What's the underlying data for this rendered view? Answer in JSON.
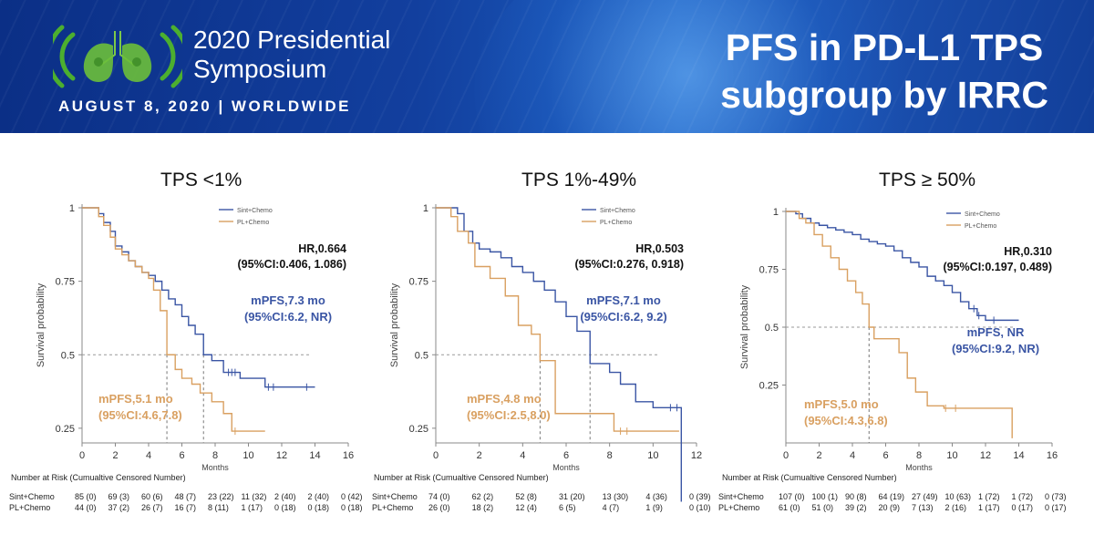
{
  "header": {
    "symposium_line1": "2020 Presidential",
    "symposium_line2": "Symposium",
    "date": "AUGUST 8, 2020 | WORLDWIDE",
    "slide_title_line1": "PFS in PD-L1 TPS",
    "slide_title_line2": "subgroup by IRRC",
    "colors": {
      "banner": "#123f9e",
      "sint": "#3a55a4",
      "pl": "#d9a061",
      "logo_green": "#4caf2f"
    }
  },
  "risk_table_title": "Number at Risk (Cumualtive Censored Number)",
  "chart_data": [
    {
      "type": "line",
      "title": "TPS <1%",
      "xlabel": "Months",
      "ylabel": "Survival probability",
      "xlim": [
        0,
        16
      ],
      "ylim": [
        0.2,
        1.0
      ],
      "x_ticks": [
        0,
        2,
        4,
        6,
        8,
        10,
        12,
        14,
        16
      ],
      "y_ticks": [
        0.25,
        0.5,
        0.75,
        1
      ],
      "y_tick_labels": [
        "0.25",
        "0.5",
        "0.75",
        "1"
      ],
      "legend": [
        "Sint+Chemo",
        "PL+Chemo"
      ],
      "hr_line1": "HR,0.664",
      "hr_line2": "(95%CI:0.406, 1.086)",
      "sint_median_line1": "mPFS,7.3 mo",
      "sint_median_line2": "(95%CI:6.2, NR)",
      "pl_median_line1": "mPFS,5.1 mo",
      "pl_median_line2": "(95%CI:4.6,7.8)",
      "medians": [
        7.3,
        5.1
      ],
      "series": [
        {
          "name": "Sint+Chemo",
          "x": [
            0,
            1,
            1.3,
            1.7,
            2,
            2.4,
            2.8,
            3.2,
            3.6,
            4,
            4.4,
            4.8,
            5.2,
            5.6,
            6,
            6.4,
            6.8,
            7.3,
            7.8,
            8.5,
            9.5,
            11,
            14
          ],
          "y": [
            1,
            0.98,
            0.95,
            0.92,
            0.87,
            0.85,
            0.82,
            0.8,
            0.78,
            0.77,
            0.75,
            0.72,
            0.69,
            0.67,
            0.63,
            0.6,
            0.57,
            0.5,
            0.48,
            0.44,
            0.42,
            0.39,
            0.39
          ],
          "censor_x": [
            8.8,
            9,
            9.2,
            11.2,
            11.5,
            13.5
          ]
        },
        {
          "name": "PL+Chemo",
          "x": [
            0,
            1,
            1.3,
            1.7,
            2,
            2.4,
            2.8,
            3.2,
            3.6,
            4,
            4.3,
            4.7,
            5.1,
            5.6,
            6,
            6.6,
            7.1,
            7.8,
            8.5,
            9,
            11
          ],
          "y": [
            1,
            0.97,
            0.94,
            0.9,
            0.86,
            0.84,
            0.82,
            0.8,
            0.78,
            0.76,
            0.72,
            0.65,
            0.5,
            0.45,
            0.42,
            0.4,
            0.37,
            0.34,
            0.3,
            0.24,
            0.24
          ],
          "censor_x": [
            9.2
          ]
        }
      ],
      "risk_sint": [
        "85 (0)",
        "69 (3)",
        "60 (6)",
        "48 (7)",
        "23 (22)",
        "11 (32)",
        "2 (40)",
        "2 (40)",
        "0 (42)"
      ],
      "risk_pl": [
        "44 (0)",
        "37 (2)",
        "26 (7)",
        "16 (7)",
        "8 (11)",
        "1 (17)",
        "0 (18)",
        "0 (18)",
        "0 (18)"
      ]
    },
    {
      "type": "line",
      "title": "TPS 1%-49%",
      "xlabel": "Months",
      "ylabel": "Survival probability",
      "xlim": [
        0,
        12
      ],
      "ylim": [
        0.2,
        1.0
      ],
      "x_ticks": [
        0,
        2,
        4,
        6,
        8,
        10,
        12
      ],
      "y_ticks": [
        0.25,
        0.5,
        0.75,
        1
      ],
      "y_tick_labels": [
        "0.25",
        "0.5",
        "0.75",
        "1"
      ],
      "legend": [
        "Sint+Chemo",
        "PL+Chemo"
      ],
      "hr_line1": "HR,0.503",
      "hr_line2": "(95%CI:0.276, 0.918)",
      "sint_median_line1": "mPFS,7.1 mo",
      "sint_median_line2": "(95%CI:6.2, 9.2)",
      "pl_median_line1": "mPFS,4.8 mo",
      "pl_median_line2": "(95%CI:2.5,8.0)",
      "medians": [
        7.1,
        4.8
      ],
      "series": [
        {
          "name": "Sint+Chemo",
          "x": [
            0,
            1,
            1.3,
            1.7,
            2,
            2.5,
            3,
            3.5,
            4,
            4.5,
            5,
            5.5,
            6,
            6.5,
            7.1,
            8,
            8.5,
            9.2,
            10,
            11,
            11.3
          ],
          "y": [
            1,
            0.98,
            0.92,
            0.88,
            0.86,
            0.85,
            0.83,
            0.8,
            0.78,
            0.75,
            0.72,
            0.68,
            0.63,
            0.58,
            0.47,
            0.44,
            0.4,
            0.34,
            0.32,
            0.32,
            0.0
          ],
          "censor_x": [
            10.8,
            11.1
          ]
        },
        {
          "name": "PL+Chemo",
          "x": [
            0,
            0.7,
            1,
            1.5,
            1.8,
            2.5,
            3.2,
            3.8,
            4.4,
            4.8,
            5.5,
            6,
            6.5,
            7.1,
            7.8,
            8.2,
            9,
            11.2
          ],
          "y": [
            1,
            0.97,
            0.92,
            0.88,
            0.8,
            0.76,
            0.7,
            0.6,
            0.57,
            0.48,
            0.3,
            0.3,
            0.3,
            0.3,
            0.3,
            0.24,
            0.24,
            0.24
          ],
          "censor_x": [
            8.5,
            8.8
          ]
        }
      ],
      "risk_sint": [
        "74 (0)",
        "62 (2)",
        "52 (8)",
        "31 (20)",
        "13 (30)",
        "4 (36)",
        "0 (39)"
      ],
      "risk_pl": [
        "26 (0)",
        "18 (2)",
        "12 (4)",
        "6 (5)",
        "4 (7)",
        "1 (9)",
        "0 (10)"
      ]
    },
    {
      "type": "line",
      "title": "TPS ≥ 50%",
      "xlabel": "Months",
      "ylabel": "Survival probability",
      "xlim": [
        0,
        16
      ],
      "ylim": [
        0.0,
        1.0
      ],
      "x_ticks": [
        0,
        2,
        4,
        6,
        8,
        10,
        12,
        14,
        16
      ],
      "y_ticks": [
        0.25,
        0.5,
        0.75,
        1
      ],
      "y_tick_labels": [
        "0.25",
        "0.5",
        "0.75",
        "1"
      ],
      "legend": [
        "Sint+Chemo",
        "PL+Chemo"
      ],
      "hr_line1": "HR,0.310",
      "hr_line2": "(95%CI:0.197, 0.489)",
      "sint_median_line1": "mPFS, NR",
      "sint_median_line2": "(95%CI:9.2, NR)",
      "pl_median_line1": "mPFS,5.0 mo",
      "pl_median_line2": "(95%CI:4.3,6.8)",
      "medians": [
        null,
        5.0
      ],
      "series": [
        {
          "name": "Sint+Chemo",
          "x": [
            0,
            0.6,
            1,
            1.5,
            2,
            2.5,
            3,
            3.5,
            4,
            4.5,
            5,
            5.5,
            6,
            6.5,
            7,
            7.5,
            8,
            8.5,
            9,
            9.5,
            10,
            10.5,
            11,
            11.5,
            12,
            13,
            14
          ],
          "y": [
            1,
            0.99,
            0.97,
            0.95,
            0.94,
            0.93,
            0.92,
            0.91,
            0.9,
            0.88,
            0.87,
            0.86,
            0.85,
            0.83,
            0.8,
            0.78,
            0.76,
            0.72,
            0.7,
            0.68,
            0.65,
            0.61,
            0.58,
            0.55,
            0.53,
            0.53,
            0.53
          ],
          "censor_x": [
            11.3,
            11.6,
            12.5
          ]
        },
        {
          "name": "PL+Chemo",
          "x": [
            0,
            0.8,
            1.2,
            1.7,
            2.2,
            2.7,
            3.2,
            3.7,
            4.2,
            4.6,
            5,
            5.3,
            6,
            6.8,
            7.3,
            7.8,
            8.5,
            9.5,
            10.5,
            12,
            13.6,
            13.6
          ],
          "y": [
            1,
            0.97,
            0.95,
            0.9,
            0.85,
            0.8,
            0.75,
            0.7,
            0.65,
            0.6,
            0.5,
            0.45,
            0.45,
            0.39,
            0.28,
            0.22,
            0.16,
            0.15,
            0.15,
            0.15,
            0.15,
            0.02
          ],
          "censor_x": [
            9.6,
            10.2
          ]
        }
      ],
      "risk_sint": [
        "107 (0)",
        "100 (1)",
        "90 (8)",
        "64 (19)",
        "27 (49)",
        "10 (63)",
        "1 (72)",
        "1 (72)",
        "0 (73)"
      ],
      "risk_pl": [
        "61 (0)",
        "51 (0)",
        "39 (2)",
        "20 (9)",
        "7 (13)",
        "2 (16)",
        "1 (17)",
        "0 (17)",
        "0 (17)"
      ]
    }
  ]
}
